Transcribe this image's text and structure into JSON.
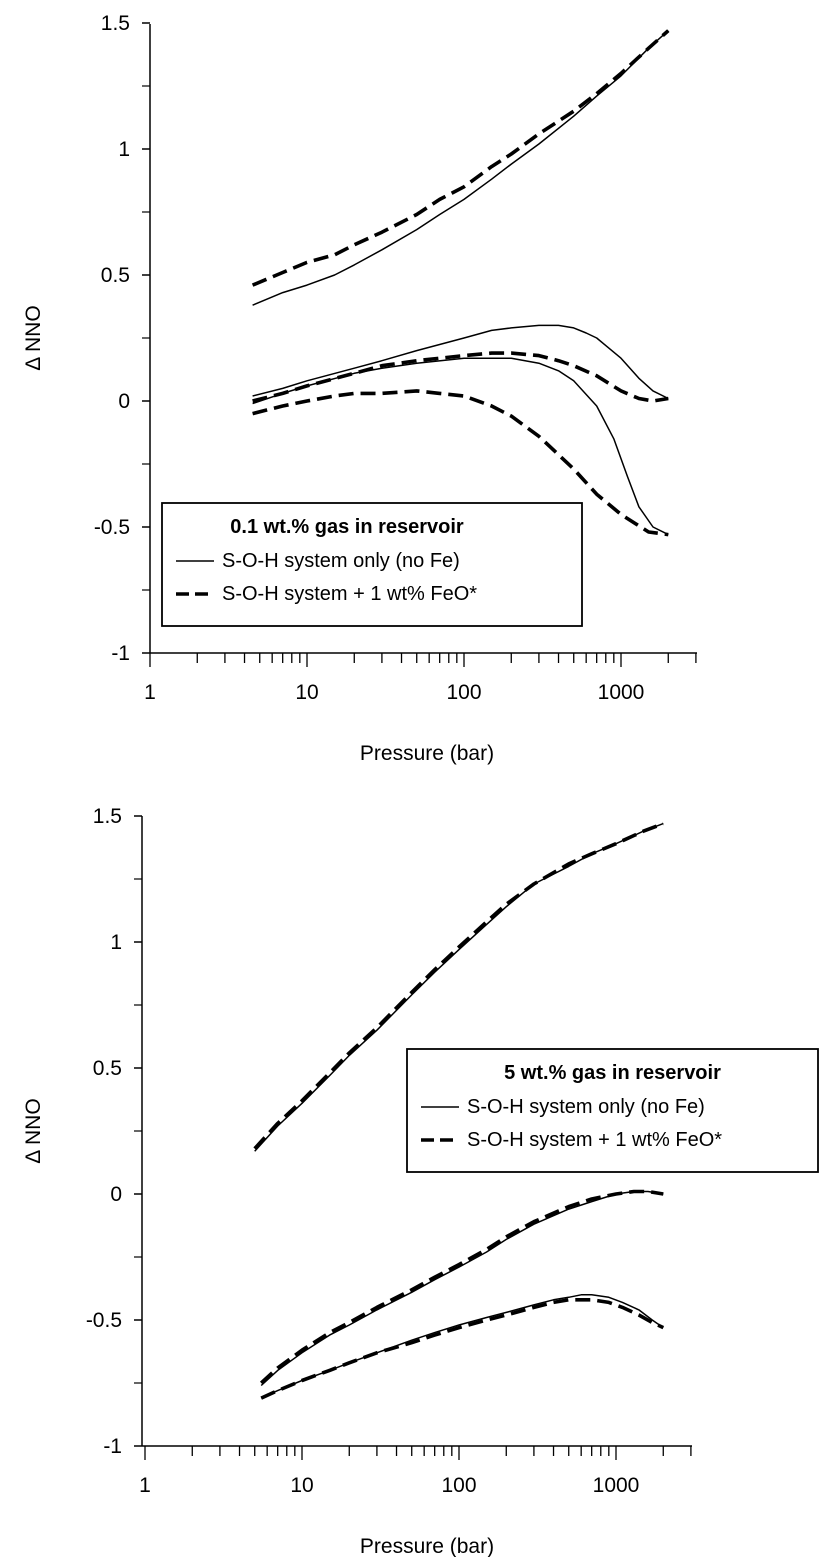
{
  "chart_data": [
    {
      "type": "line",
      "title": "",
      "xlabel": "Pressure (bar)",
      "ylabel": "Δ NNO",
      "xscale": "log",
      "xlim": [
        1,
        3000
      ],
      "ylim": [
        -1,
        1.5
      ],
      "xticks": [
        "1",
        "10",
        "100",
        "1000"
      ],
      "yticks": [
        "-1",
        "-0.5",
        "0",
        "0.5",
        "1",
        "1.5"
      ],
      "grid": false,
      "legend": {
        "title": "0.1 wt.% gas in reservoir",
        "placement": "bottom-left",
        "entries": [
          "S-O-H system only (no Fe)",
          "S-O-H system + 1 wt% FeO*"
        ]
      },
      "series": [
        {
          "name": "S-O-H system only (no Fe)",
          "style": "solid",
          "x": [
            4.5,
            7,
            10,
            15,
            20,
            30,
            50,
            70,
            100,
            150,
            200,
            300,
            500,
            700,
            1000,
            1500,
            2000
          ],
          "y": [
            0.38,
            0.43,
            0.46,
            0.5,
            0.54,
            0.6,
            0.68,
            0.74,
            0.8,
            0.88,
            0.94,
            1.02,
            1.13,
            1.21,
            1.29,
            1.4,
            1.47
          ]
        },
        {
          "name": "S-O-H system + 1 wt% FeO*",
          "style": "dashed",
          "x": [
            4.5,
            7,
            10,
            15,
            20,
            30,
            50,
            70,
            100,
            150,
            200,
            300,
            500,
            700,
            1000,
            1500,
            2000
          ],
          "y": [
            0.46,
            0.51,
            0.55,
            0.58,
            0.62,
            0.67,
            0.74,
            0.8,
            0.85,
            0.93,
            0.98,
            1.06,
            1.15,
            1.22,
            1.3,
            1.4,
            1.47
          ]
        },
        {
          "name": "S-O-H system only (no Fe)",
          "style": "solid",
          "x": [
            4.5,
            7,
            10,
            20,
            30,
            50,
            100,
            150,
            200,
            300,
            400,
            500,
            600,
            700,
            800,
            1000,
            1300,
            1600,
            2000
          ],
          "y": [
            0.02,
            0.05,
            0.08,
            0.13,
            0.16,
            0.2,
            0.25,
            0.28,
            0.29,
            0.3,
            0.3,
            0.29,
            0.27,
            0.25,
            0.22,
            0.17,
            0.09,
            0.04,
            0.01
          ]
        },
        {
          "name": "S-O-H system + 1 wt% FeO*",
          "style": "dashed",
          "x": [
            4.5,
            7,
            10,
            20,
            30,
            50,
            100,
            150,
            200,
            300,
            400,
            500,
            700,
            1000,
            1300,
            1600,
            2000
          ],
          "y": [
            0.0,
            0.03,
            0.06,
            0.11,
            0.14,
            0.16,
            0.18,
            0.19,
            0.19,
            0.18,
            0.16,
            0.14,
            0.1,
            0.04,
            0.01,
            0.0,
            0.01
          ]
        },
        {
          "name": "S-O-H system only (no Fe)",
          "style": "solid",
          "x": [
            4.5,
            7,
            10,
            20,
            30,
            50,
            100,
            150,
            200,
            300,
            400,
            500,
            700,
            900,
            1100,
            1300,
            1600,
            2000
          ],
          "y": [
            -0.01,
            0.03,
            0.06,
            0.11,
            0.13,
            0.15,
            0.17,
            0.17,
            0.17,
            0.15,
            0.12,
            0.08,
            -0.02,
            -0.15,
            -0.3,
            -0.42,
            -0.5,
            -0.53
          ]
        },
        {
          "name": "S-O-H system + 1 wt% FeO*",
          "style": "dashed",
          "x": [
            4.5,
            7,
            10,
            15,
            20,
            30,
            50,
            70,
            100,
            150,
            200,
            300,
            500,
            700,
            1000,
            1500,
            2000
          ],
          "y": [
            -0.05,
            -0.02,
            0.0,
            0.02,
            0.03,
            0.03,
            0.04,
            0.03,
            0.02,
            -0.02,
            -0.06,
            -0.14,
            -0.27,
            -0.37,
            -0.45,
            -0.52,
            -0.53
          ]
        }
      ]
    },
    {
      "type": "line",
      "title": "",
      "xlabel": "Pressure (bar)",
      "ylabel": "Δ NNO",
      "xscale": "log",
      "xlim": [
        1,
        3000
      ],
      "ylim": [
        -1,
        1.5
      ],
      "xticks": [
        "1",
        "10",
        "100",
        "1000"
      ],
      "yticks": [
        "-1",
        "-0.5",
        "0",
        "0.5",
        "1",
        "1.5"
      ],
      "grid": false,
      "legend": {
        "title": "5 wt.% gas in reservoir",
        "placement": "middle-right",
        "entries": [
          "S-O-H system only (no Fe)",
          "S-O-H system + 1 wt% FeO*"
        ]
      },
      "series": [
        {
          "name": "S-O-H system only (no Fe)",
          "style": "solid",
          "x": [
            5,
            7,
            10,
            15,
            20,
            30,
            50,
            70,
            100,
            150,
            200,
            300,
            500,
            700,
            1000,
            1500,
            2000
          ],
          "y": [
            0.17,
            0.27,
            0.36,
            0.47,
            0.55,
            0.65,
            0.79,
            0.88,
            0.97,
            1.07,
            1.14,
            1.23,
            1.3,
            1.35,
            1.39,
            1.44,
            1.47
          ]
        },
        {
          "name": "S-O-H system + 1 wt% FeO*",
          "style": "dashed",
          "x": [
            5,
            7,
            10,
            15,
            20,
            30,
            50,
            70,
            100,
            150,
            200,
            300,
            500,
            700,
            1000,
            1500,
            2000
          ],
          "y": [
            0.18,
            0.28,
            0.37,
            0.48,
            0.56,
            0.66,
            0.8,
            0.89,
            0.98,
            1.08,
            1.15,
            1.23,
            1.31,
            1.35,
            1.39,
            1.44,
            1.47
          ]
        },
        {
          "name": "S-O-H system only (no Fe)",
          "style": "solid",
          "x": [
            5.5,
            7,
            10,
            15,
            20,
            30,
            50,
            70,
            100,
            150,
            200,
            300,
            500,
            700,
            1000,
            1300,
            1600,
            2000
          ],
          "y": [
            -0.76,
            -0.7,
            -0.63,
            -0.56,
            -0.52,
            -0.46,
            -0.39,
            -0.34,
            -0.29,
            -0.23,
            -0.18,
            -0.12,
            -0.06,
            -0.03,
            0.0,
            0.01,
            0.01,
            0.0
          ]
        },
        {
          "name": "S-O-H system + 1 wt% FeO*",
          "style": "dashed",
          "x": [
            5.5,
            7,
            10,
            15,
            20,
            30,
            50,
            70,
            100,
            150,
            200,
            300,
            500,
            700,
            1000,
            1300,
            1600,
            2000
          ],
          "y": [
            -0.75,
            -0.69,
            -0.62,
            -0.55,
            -0.51,
            -0.45,
            -0.38,
            -0.33,
            -0.28,
            -0.22,
            -0.17,
            -0.11,
            -0.05,
            -0.02,
            0.0,
            0.01,
            0.01,
            0.0
          ]
        },
        {
          "name": "S-O-H system only (no Fe)",
          "style": "solid",
          "x": [
            5.5,
            7,
            10,
            15,
            20,
            30,
            50,
            70,
            100,
            150,
            200,
            300,
            400,
            500,
            600,
            700,
            900,
            1100,
            1400,
            1700,
            2000
          ],
          "y": [
            -0.81,
            -0.78,
            -0.74,
            -0.7,
            -0.67,
            -0.63,
            -0.58,
            -0.55,
            -0.52,
            -0.49,
            -0.47,
            -0.44,
            -0.42,
            -0.41,
            -0.4,
            -0.4,
            -0.41,
            -0.43,
            -0.46,
            -0.5,
            -0.53
          ]
        },
        {
          "name": "S-O-H system + 1 wt% FeO*",
          "style": "dashed",
          "x": [
            5.5,
            7,
            10,
            15,
            20,
            30,
            50,
            70,
            100,
            150,
            200,
            300,
            400,
            500,
            600,
            700,
            900,
            1100,
            1400,
            1700,
            2000
          ],
          "y": [
            -0.81,
            -0.78,
            -0.74,
            -0.7,
            -0.67,
            -0.63,
            -0.59,
            -0.56,
            -0.53,
            -0.5,
            -0.48,
            -0.45,
            -0.43,
            -0.42,
            -0.42,
            -0.42,
            -0.43,
            -0.45,
            -0.48,
            -0.51,
            -0.53
          ]
        }
      ]
    }
  ]
}
